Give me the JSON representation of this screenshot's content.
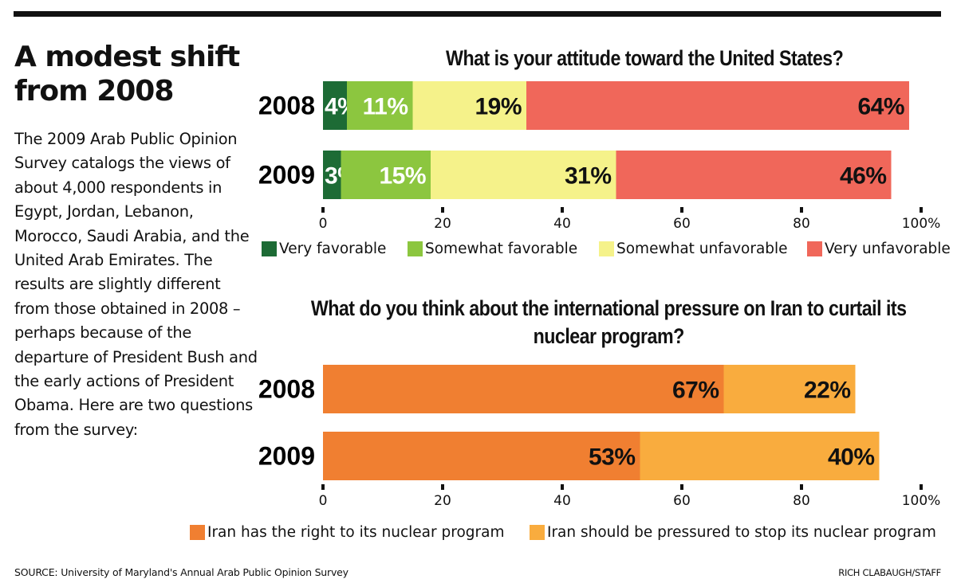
{
  "headline": "A modest shift from 2008",
  "body": "The 2009 Arab Public Opinion Survey catalogs the views of about 4,000 respondents in Egypt, Jordan, Lebanon, Morocco, Saudi Arabia, and the United Arab Emirates. The results are slightly different from those obtained in 2008 – perhaps because of the departure of President Bush and the early actions of President Obama. Here are two questions from the survey:",
  "source": "SOURCE: University of Maryland's Annual Arab Public Opinion Survey",
  "credit": "RICH CLABAUGH/STAFF",
  "chart_data": [
    {
      "type": "bar",
      "orientation": "horizontal",
      "stacked": true,
      "title": "What is your attitude toward the United States?",
      "categories": [
        "2008",
        "2009"
      ],
      "series": [
        {
          "name": "Very favorable",
          "values": [
            4,
            3
          ],
          "color": "#1d6b35",
          "label_color": "#ffffff"
        },
        {
          "name": "Somewhat favorable",
          "values": [
            11,
            15
          ],
          "color": "#8cc63f",
          "label_color": "#ffffff"
        },
        {
          "name": "Somewhat unfavorable",
          "values": [
            19,
            31
          ],
          "color": "#f5f28a",
          "label_color": "#111111"
        },
        {
          "name": "Very unfavorable",
          "values": [
            64,
            46
          ],
          "color": "#f0675a",
          "label_color": "#111111"
        }
      ],
      "xlim": [
        0,
        100
      ],
      "xticks": [
        "0",
        "20",
        "40",
        "60",
        "80",
        "100%"
      ],
      "grid": false,
      "legend": "bottom"
    },
    {
      "type": "bar",
      "orientation": "horizontal",
      "stacked": true,
      "title": "What do you think about the international pressure on Iran to curtail its nuclear program?",
      "categories": [
        "2008",
        "2009"
      ],
      "series": [
        {
          "name": "Iran has the right to its nuclear program",
          "values": [
            67,
            53
          ],
          "color": "#f07f31",
          "label_color": "#111111"
        },
        {
          "name": "Iran should be pressured to stop its nuclear program",
          "values": [
            22,
            40
          ],
          "color": "#f9ac3e",
          "label_color": "#111111"
        }
      ],
      "xlim": [
        0,
        100
      ],
      "xticks": [
        "0",
        "20",
        "40",
        "60",
        "80",
        "100%"
      ],
      "grid": false,
      "legend": "bottom"
    }
  ]
}
